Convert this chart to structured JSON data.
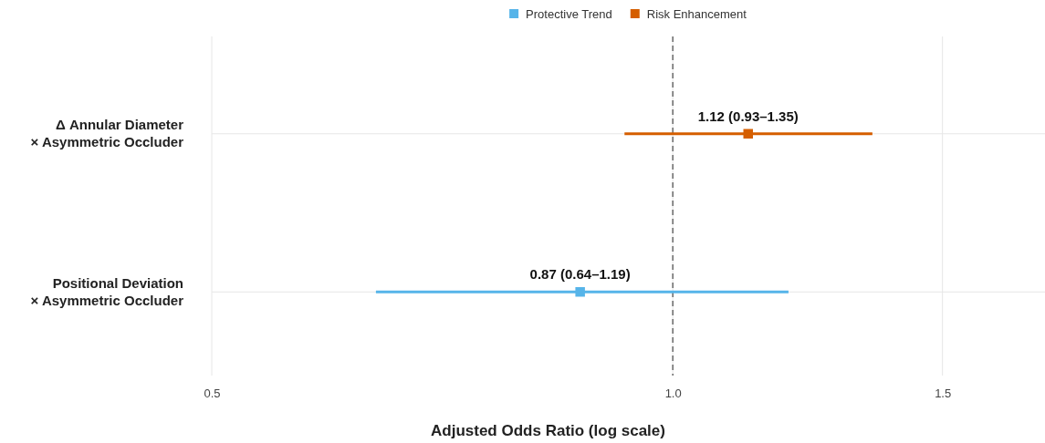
{
  "chart_data": {
    "type": "scatter",
    "orientation": "horizontal",
    "log": "x",
    "categories": [
      "Δ Annular Diameter\n× Asymmetric Occluder",
      "Positional Deviation\n× Asymmetric Occluder"
    ],
    "series": [
      {
        "name": "Protective Trend",
        "color": "#56b4e9",
        "values": [
          null,
          0.87
        ],
        "errors": [
          null,
          [
            0.64,
            1.19
          ]
        ],
        "value_labels": [
          null,
          "0.87 (0.64–1.19)"
        ]
      },
      {
        "name": "Risk Enhancement",
        "color": "#d55e00",
        "values": [
          1.12,
          null
        ],
        "errors": [
          [
            0.93,
            1.35
          ],
          null
        ],
        "value_labels": [
          "1.12 (0.93–1.35)",
          null
        ]
      }
    ],
    "xlim": [
      0.5,
      1.75
    ],
    "xticks": [
      0.5,
      {
        "value": 1,
        "label": "1.0"
      },
      1.5
    ],
    "xlabel": "Adjusted Odds Ratio (log scale)",
    "ref_lines": [
      {
        "axis": "x",
        "value": 1,
        "color": "#555555",
        "line_style": "dashed"
      }
    ],
    "grid": true,
    "legend": "top",
    "marker": "square"
  }
}
